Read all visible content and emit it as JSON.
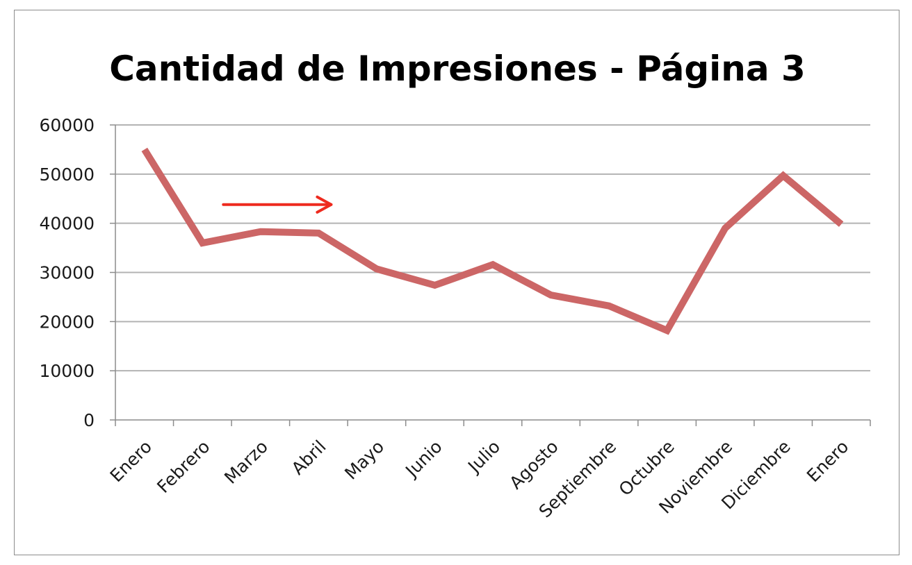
{
  "chart_data": {
    "type": "line",
    "title": "Cantidad de Impresiones - Página 3",
    "xlabel": "",
    "ylabel": "",
    "categories": [
      "Enero",
      "Febrero",
      "Marzo",
      "Abril",
      "Mayo",
      "Junio",
      "Julio",
      "Agosto",
      "Septiembre",
      "Octubre",
      "Noviembre",
      "Diciembre",
      "Enero"
    ],
    "series": [
      {
        "values": [
          55000,
          36000,
          38300,
          38000,
          30700,
          27400,
          31600,
          25400,
          23200,
          18200,
          39000,
          49700,
          39800
        ]
      }
    ],
    "ylim": [
      0,
      60000
    ],
    "yticks": [
      0,
      10000,
      20000,
      30000,
      40000,
      50000,
      60000
    ],
    "grid": true,
    "legend": "none",
    "colors": {
      "line": "#cc6666",
      "grid": "#b3b3b3",
      "axis": "#8c8c8c",
      "annotation_arrow": "#ee2a1e"
    },
    "annotations": [
      {
        "type": "arrow",
        "direction": "right",
        "from": {
          "x": "Febrero",
          "y": 43800
        },
        "to": {
          "x": "Abril",
          "y": 43800
        }
      }
    ]
  }
}
